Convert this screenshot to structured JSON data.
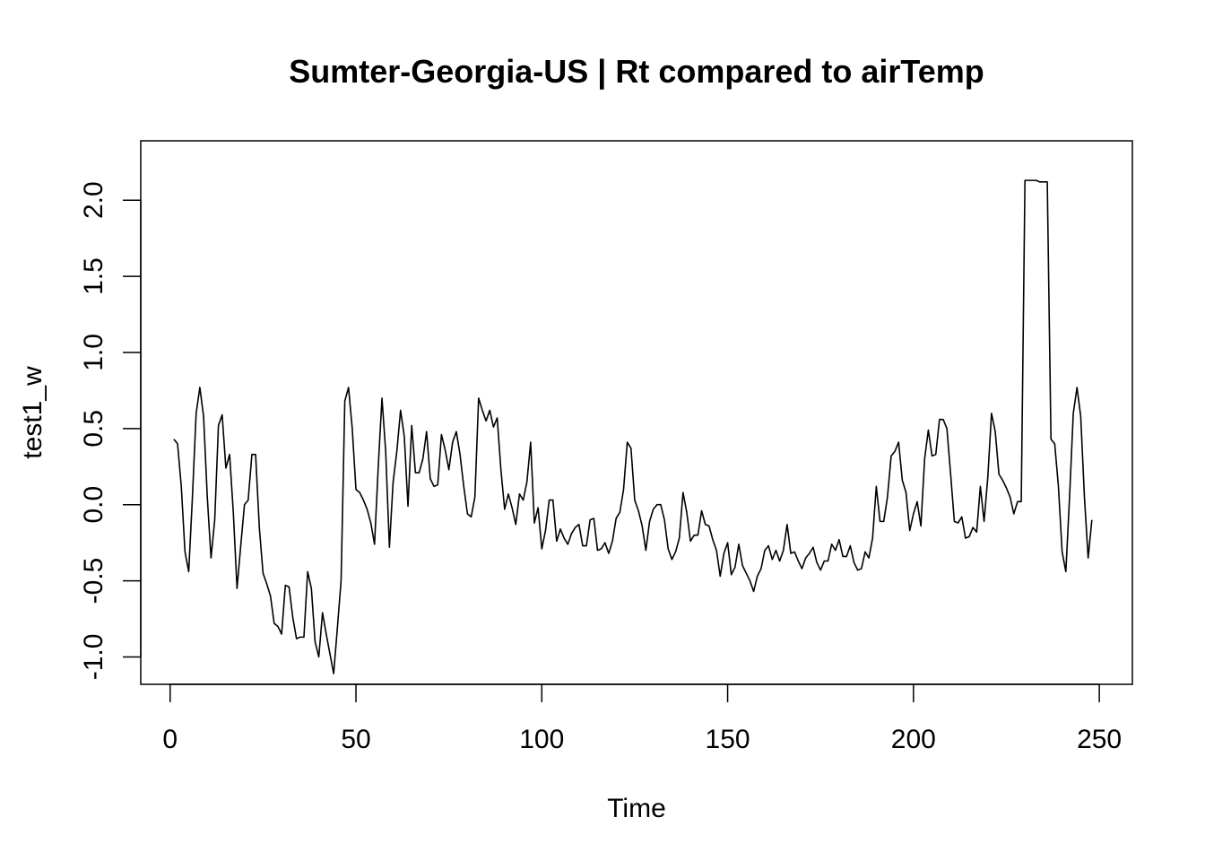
{
  "chart_data": {
    "type": "line",
    "title": "Sumter-Georgia-US | Rt compared to airTemp",
    "xlabel": "Time",
    "ylabel": "test1_w",
    "xlim": [
      -7.9,
      258.9
    ],
    "ylim": [
      -1.18,
      2.39
    ],
    "x_ticks": [
      0,
      50,
      100,
      150,
      200,
      250
    ],
    "y_ticks": [
      -1.0,
      -0.5,
      0.0,
      0.5,
      1.0,
      1.5,
      2.0
    ],
    "x_tick_labels": [
      "0",
      "50",
      "100",
      "150",
      "200",
      "250"
    ],
    "y_tick_labels": [
      "-1.0",
      "-0.5",
      "0.0",
      "0.5",
      "1.0",
      "1.5",
      "2.0"
    ],
    "grid": false,
    "legend": "none",
    "line_color": "#000000",
    "series": [
      {
        "x_start": 1,
        "x_step": 1,
        "values": [
          0.43,
          0.4,
          0.12,
          -0.31,
          -0.44,
          0.05,
          0.6,
          0.77,
          0.58,
          0.05,
          -0.35,
          -0.1,
          0.52,
          0.59,
          0.24,
          0.33,
          -0.05,
          -0.55,
          -0.27,
          0.0,
          0.03,
          0.33,
          0.33,
          -0.15,
          -0.45,
          -0.52,
          -0.6,
          -0.78,
          -0.8,
          -0.85,
          -0.53,
          -0.54,
          -0.74,
          -0.88,
          -0.87,
          -0.87,
          -0.44,
          -0.55,
          -0.9,
          -1.0,
          -0.71,
          -0.85,
          -0.98,
          -1.11,
          -0.81,
          -0.5,
          0.68,
          0.77,
          0.5,
          0.1,
          0.08,
          0.03,
          -0.03,
          -0.12,
          -0.26,
          0.25,
          0.7,
          0.35,
          -0.28,
          0.15,
          0.35,
          0.62,
          0.45,
          -0.01,
          0.52,
          0.21,
          0.21,
          0.3,
          0.48,
          0.17,
          0.12,
          0.13,
          0.46,
          0.36,
          0.23,
          0.41,
          0.48,
          0.33,
          0.12,
          -0.06,
          -0.08,
          0.05,
          0.7,
          0.62,
          0.55,
          0.62,
          0.51,
          0.57,
          0.23,
          -0.03,
          0.07,
          -0.02,
          -0.13,
          0.07,
          0.03,
          0.15,
          0.41,
          -0.12,
          -0.02,
          -0.29,
          -0.17,
          0.03,
          0.03,
          -0.24,
          -0.16,
          -0.22,
          -0.26,
          -0.19,
          -0.15,
          -0.13,
          -0.27,
          -0.27,
          -0.1,
          -0.09,
          -0.3,
          -0.29,
          -0.25,
          -0.32,
          -0.24,
          -0.09,
          -0.05,
          0.1,
          0.41,
          0.37,
          0.03,
          -0.04,
          -0.14,
          -0.3,
          -0.11,
          -0.03,
          0.0,
          0.0,
          -0.1,
          -0.29,
          -0.36,
          -0.31,
          -0.22,
          0.08,
          -0.05,
          -0.24,
          -0.2,
          -0.2,
          -0.04,
          -0.13,
          -0.14,
          -0.23,
          -0.3,
          -0.47,
          -0.32,
          -0.25,
          -0.46,
          -0.41,
          -0.26,
          -0.4,
          -0.45,
          -0.5,
          -0.57,
          -0.47,
          -0.42,
          -0.3,
          -0.27,
          -0.36,
          -0.3,
          -0.37,
          -0.3,
          -0.13,
          -0.32,
          -0.31,
          -0.37,
          -0.42,
          -0.35,
          -0.32,
          -0.28,
          -0.38,
          -0.43,
          -0.37,
          -0.37,
          -0.26,
          -0.3,
          -0.23,
          -0.34,
          -0.34,
          -0.27,
          -0.38,
          -0.43,
          -0.42,
          -0.31,
          -0.35,
          -0.22,
          0.12,
          -0.11,
          -0.11,
          0.05,
          0.32,
          0.35,
          0.41,
          0.16,
          0.08,
          -0.17,
          -0.06,
          0.02,
          -0.14,
          0.3,
          0.49,
          0.32,
          0.33,
          0.56,
          0.56,
          0.5,
          0.2,
          -0.11,
          -0.12,
          -0.08,
          -0.22,
          -0.21,
          -0.15,
          -0.18,
          0.12,
          -0.11,
          0.18,
          0.6,
          0.48,
          0.2,
          0.16,
          0.11,
          0.05,
          -0.06,
          0.02,
          0.02,
          2.13,
          2.13,
          2.13,
          2.13,
          2.12,
          2.12,
          2.12,
          0.43,
          0.4,
          0.12,
          -0.31,
          -0.44,
          0.05,
          0.6,
          0.77,
          0.58,
          0.05,
          -0.35,
          -0.1
        ]
      }
    ]
  }
}
